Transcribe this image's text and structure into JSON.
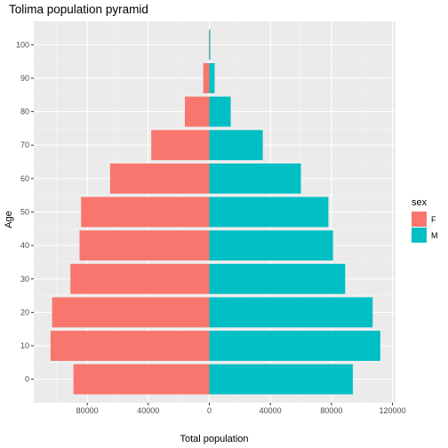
{
  "chart_data": {
    "type": "bar",
    "orientation": "horizontal",
    "title": "Tolima population pyramid",
    "xlabel": "Total population",
    "ylabel": "Age",
    "x_ticks": [
      {
        "value": -80000,
        "label": "80000"
      },
      {
        "value": -40000,
        "label": "40000"
      },
      {
        "value": 0,
        "label": "0"
      },
      {
        "value": 40000,
        "label": "40000"
      },
      {
        "value": 80000,
        "label": "80000"
      },
      {
        "value": 120000,
        "label": "120000"
      }
    ],
    "y_ticks": [
      "0",
      "10",
      "20",
      "30",
      "40",
      "50",
      "60",
      "70",
      "80",
      "90",
      "100"
    ],
    "xlim": [
      -115000,
      122000
    ],
    "ylim": [
      -7,
      107
    ],
    "grid": true,
    "legend": {
      "title": "sex",
      "position": "right"
    },
    "ages": [
      0,
      10,
      20,
      30,
      40,
      50,
      60,
      70,
      80,
      90,
      100
    ],
    "series": [
      {
        "name": "F",
        "color": "#F8766D",
        "values": [
          -89000,
          -104000,
          -103000,
          -91000,
          -85000,
          -84000,
          -65000,
          -38000,
          -16000,
          -4000,
          -300
        ]
      },
      {
        "name": "M",
        "color": "#00BFC4",
        "values": [
          94000,
          112000,
          107000,
          89000,
          81000,
          78000,
          60000,
          35000,
          14000,
          3500,
          600
        ]
      }
    ]
  }
}
